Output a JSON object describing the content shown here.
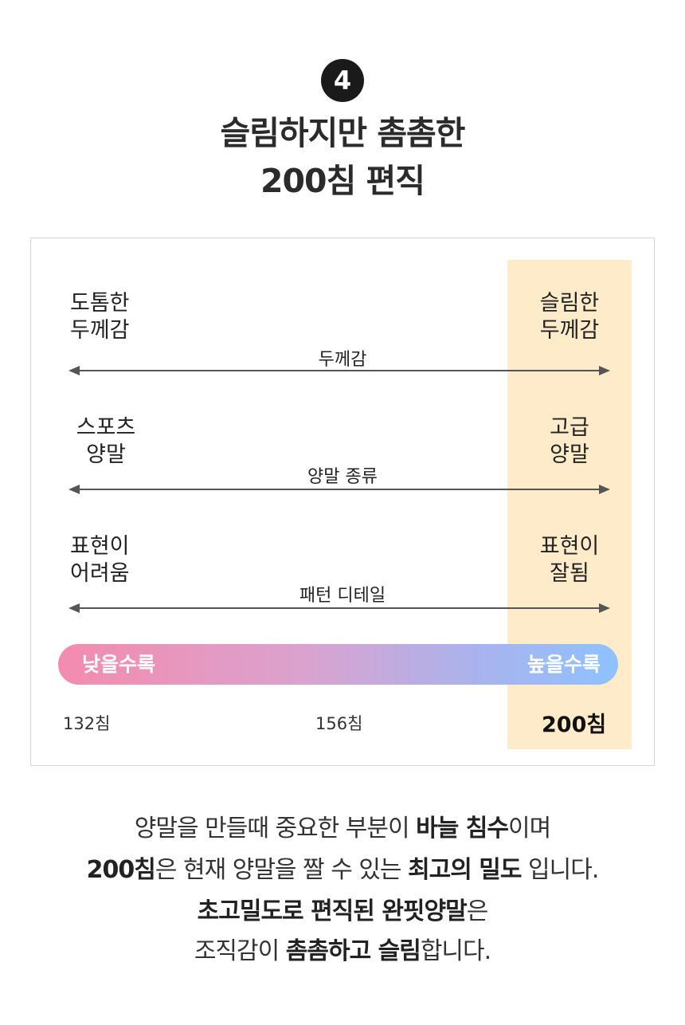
{
  "header": {
    "number": "4",
    "title_line1": "슬림하지만 촘촘한",
    "title_line2": "200침 편직"
  },
  "comparison": {
    "rows": [
      {
        "left_line1": "도톰한",
        "left_line2": "두께감",
        "axis": "두께감",
        "right_line1": "슬림한",
        "right_line2": "두께감"
      },
      {
        "left_line1": "스포츠",
        "left_line2": "양말",
        "axis": "양말 종류",
        "right_line1": "고급",
        "right_line2": "양말"
      },
      {
        "left_line1": "표현이",
        "left_line2": "어려움",
        "axis": "패턴 디테일",
        "right_line1": "표현이",
        "right_line2": "잘됨"
      }
    ],
    "scale": {
      "low_label": "낮을수록",
      "high_label": "높을수록"
    },
    "stitches": [
      "132침",
      "156침",
      "200침"
    ],
    "colors": {
      "highlight": "#fdebc9",
      "gradient_start": "#f48bae",
      "gradient_end": "#8ec2ff"
    }
  },
  "description": {
    "line1": {
      "a": "양말을 만들때 중요한 부분이 ",
      "b": "바늘 침수",
      "c": "이며"
    },
    "line2": {
      "a": "200침",
      "b": "은 현재 양말을 짤 수 있는 ",
      "c": "최고의 밀도",
      "d": " 입니다."
    },
    "line3": {
      "a": "초고밀도로 편직된 완핏양말",
      "b": "은"
    },
    "line4": {
      "a": "조직감이 ",
      "b": "촘촘하고 슬림",
      "c": "합니다."
    }
  }
}
